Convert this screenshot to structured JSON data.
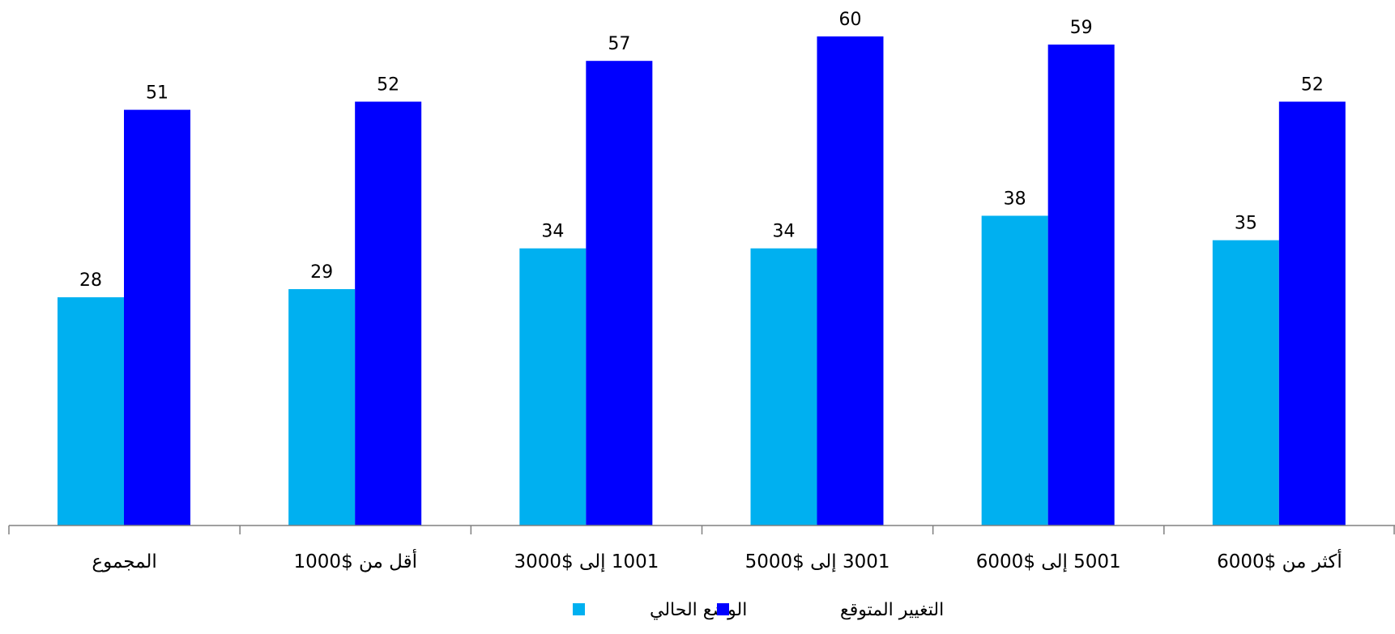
{
  "chart_data": {
    "type": "bar",
    "categories": [
      "المجموع",
      "أقل من $1000",
      "1001 إلى $3000",
      "3001 إلى $5000",
      "5001 إلى $6000",
      "أكثر من $6000"
    ],
    "series": [
      {
        "name": "الوضع الحالي",
        "values": [
          28,
          29,
          34,
          34,
          38,
          35
        ],
        "color": "#00B0F0"
      },
      {
        "name": "التغيير المتوقع",
        "values": [
          51,
          52,
          57,
          60,
          59,
          52
        ],
        "color": "#0000FF"
      }
    ],
    "title": "",
    "xlabel": "",
    "ylabel": "",
    "ylim": [
      0,
      62
    ],
    "grid": false,
    "legend_position": "bottom",
    "data_labels": true
  }
}
